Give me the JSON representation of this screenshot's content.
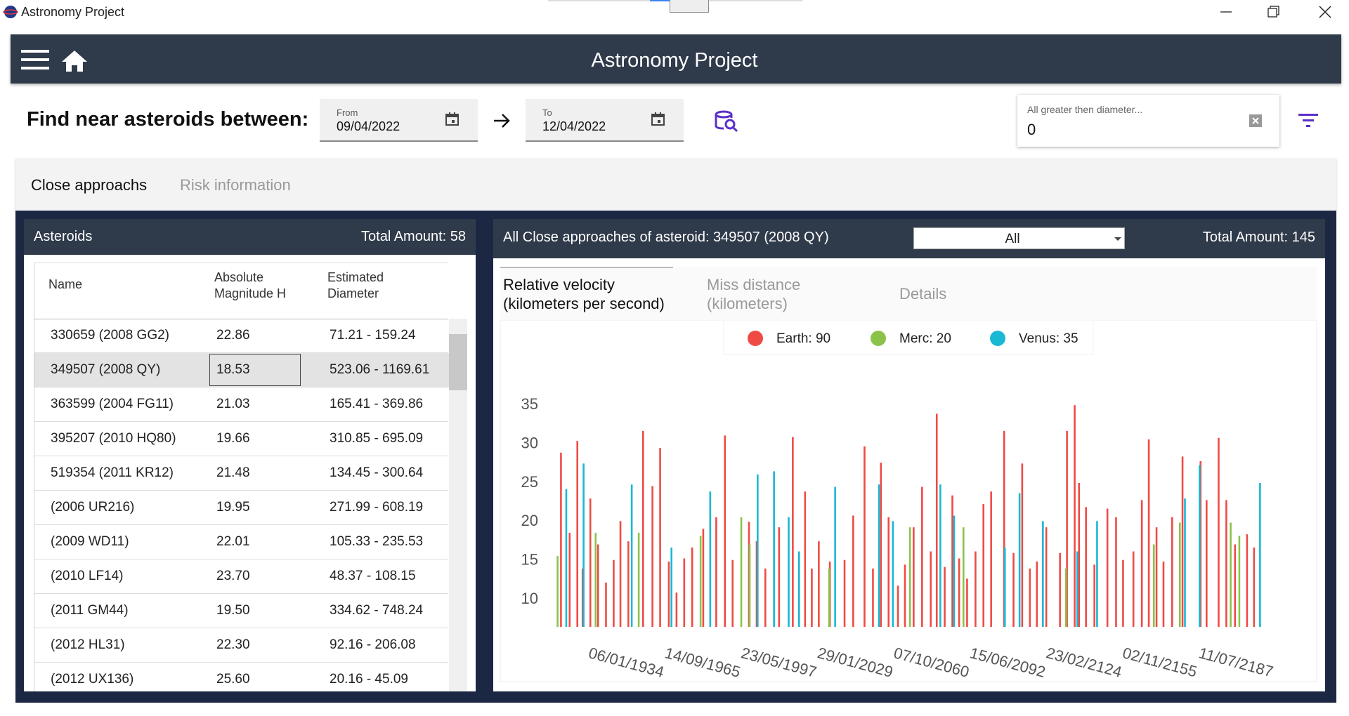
{
  "window": {
    "title": "Astronomy Project"
  },
  "header": {
    "title": "Astronomy Project"
  },
  "search": {
    "label": "Find near asteroids between:",
    "from": {
      "label": "From",
      "value": "09/04/2022"
    },
    "to": {
      "label": "To",
      "value": "12/04/2022"
    },
    "diameter": {
      "label": "All greater then diameter...",
      "value": "0"
    }
  },
  "tabs": [
    "Close approachs",
    "Risk information"
  ],
  "asteroids": {
    "title": "Asteroids",
    "total": "Total Amount: 58",
    "columns": [
      "Name",
      "Absolute Magnitude H",
      "Estimated Diameter"
    ],
    "rows": [
      [
        "330659 (2008 GG2)",
        "22.86",
        "71.21 - 159.24"
      ],
      [
        "349507 (2008 QY)",
        "18.53",
        "523.06 - 1169.61"
      ],
      [
        "363599 (2004 FG11)",
        "21.03",
        "165.41 - 369.86"
      ],
      [
        "395207 (2010 HQ80)",
        "19.66",
        "310.85 - 695.09"
      ],
      [
        "519354 (2011 KR12)",
        "21.48",
        "134.45 - 300.64"
      ],
      [
        "(2006 UR216)",
        "19.95",
        "271.99 - 608.19"
      ],
      [
        "(2009 WD11)",
        "22.01",
        "105.33 - 235.53"
      ],
      [
        "(2010 LF14)",
        "23.70",
        "48.37 - 108.15"
      ],
      [
        "(2011 GM44)",
        "19.50",
        "334.62 - 748.24"
      ],
      [
        "(2012 HL31)",
        "22.30",
        "92.16 - 206.08"
      ],
      [
        "(2012 UX136)",
        "25.60",
        "20.16 - 45.09"
      ]
    ]
  },
  "approaches": {
    "title": "All Close approaches of asteroid: 349507 (2008 QY)",
    "filter": "All",
    "total": "Total Amount: 145",
    "tabs": [
      "Relative velocity (kilometers per second)",
      "Miss distance (kilometers)",
      "Details"
    ]
  },
  "chart_data": {
    "type": "bar",
    "xlim": [
      1918,
      2216
    ],
    "ylim": [
      6.5,
      38
    ],
    "yticks": [
      10,
      15,
      20,
      25,
      30,
      35
    ],
    "xticks": [
      {
        "value": 1934.01,
        "label": "06/01/1934"
      },
      {
        "value": 1965.7,
        "label": "14/09/1965"
      },
      {
        "value": 1997.39,
        "label": "23/05/1997"
      },
      {
        "value": 2029.08,
        "label": "29/01/2029"
      },
      {
        "value": 2060.77,
        "label": "07/10/2060"
      },
      {
        "value": 2092.45,
        "label": "15/06/2092"
      },
      {
        "value": 2124.15,
        "label": "23/02/2124"
      },
      {
        "value": 2155.84,
        "label": "02/11/2155"
      },
      {
        "value": 2187.52,
        "label": "11/07/2187"
      }
    ],
    "series": [
      {
        "name": "Earth: 90",
        "color": "#ef4b45",
        "x": [
          1922.5,
          1926.1,
          1929.3,
          1931.5,
          1934.7,
          1937.9,
          1941.2,
          1944.4,
          1947.2,
          1950.5,
          1956.6,
          1960.5,
          1963.7,
          1967.3,
          1970.5,
          1973.7,
          1977.0,
          1981.6,
          1987.0,
          1990.6,
          1993.8,
          2000.6,
          2003.8,
          2007.4,
          2013.1,
          2018.8,
          2023.9,
          2026.7,
          2029.6,
          2034.2,
          2040.3,
          2043.9,
          2048.6,
          2052.1,
          2055.4,
          2058.6,
          2062.5,
          2065.4,
          2069.0,
          2072.5,
          2076.1,
          2078.6,
          2081.9,
          2085.1,
          2087.9,
          2091.2,
          2094.7,
          2098.0,
          2101.2,
          2106.6,
          2110.5,
          2114.1,
          2117.3,
          2120.2,
          2124.1,
          2129.8,
          2132.7,
          2135.9,
          2137.7,
          2140.6,
          2144.1,
          2149.5,
          2153.1,
          2156.0,
          2160.3,
          2163.8,
          2166.7,
          2169.9,
          2172.8,
          2176.4,
          2180.7,
          2188.2,
          2190.7,
          2195.7,
          2198.9,
          2202.5,
          2207.5,
          2210.4
        ],
        "values": [
          28.9,
          18.6,
          30.4,
          14.0,
          23.0,
          17.1,
          12.2,
          15.1,
          20.1,
          17.5,
          31.7,
          24.6,
          29.5,
          14.9,
          10.9,
          15.3,
          16.7,
          19.1,
          20.6,
          31.1,
          15.1,
          20.0,
          17.5,
          14.0,
          19.3,
          30.9,
          23.9,
          14.0,
          17.5,
          14.9,
          15.1,
          20.8,
          29.7,
          14.0,
          27.6,
          20.6,
          11.8,
          14.5,
          19.3,
          24.5,
          16.2,
          33.9,
          14.2,
          23.4,
          15.3,
          12.7,
          16.2,
          22.3,
          23.9,
          31.7,
          16.0,
          27.5,
          14.0,
          14.9,
          19.3,
          16.0,
          31.7,
          35.0,
          25.0,
          21.9,
          14.5,
          21.7,
          20.6,
          15.1,
          16.2,
          22.8,
          30.6,
          19.3,
          14.9,
          20.6,
          28.4,
          27.8,
          22.8,
          30.8,
          22.8,
          17.1,
          18.4,
          16.7
        ]
      },
      {
        "name": "Merc: 20",
        "color": "#8bc34a",
        "x": [
          1921.1,
          1936.9,
          1954.8,
          1980.5,
          1997.4,
          2000.9,
          2033.9,
          2067.5,
          2089.7,
          2132.3,
          2168.8,
          2179.6,
          2200.7,
          2204.3
        ],
        "values": [
          15.6,
          18.6,
          18.6,
          18.2,
          20.6,
          17.1,
          14.0,
          19.3,
          19.3,
          14.0,
          17.1,
          19.9,
          19.9,
          18.2
        ]
      },
      {
        "name": "Venus: 35",
        "color": "#1ab8d4",
        "x": [
          1924.7,
          1931.9,
          1951.9,
          1968.4,
          1984.5,
          2004.2,
          2011.0,
          2017.1,
          2021.4,
          2036.4,
          2054.6,
          2060.4,
          2080.1,
          2085.8,
          2106.9,
          2113.0,
          2122.7,
          2137.0,
          2145.2,
          2181.7,
          2187.8,
          2212.9
        ],
        "values": [
          24.2,
          27.5,
          24.8,
          16.7,
          23.9,
          26.1,
          26.5,
          20.6,
          16.2,
          24.5,
          24.8,
          20.1,
          24.8,
          20.8,
          16.7,
          23.7,
          20.1,
          16.2,
          20.1,
          23.0,
          27.3,
          25.0
        ]
      }
    ]
  }
}
